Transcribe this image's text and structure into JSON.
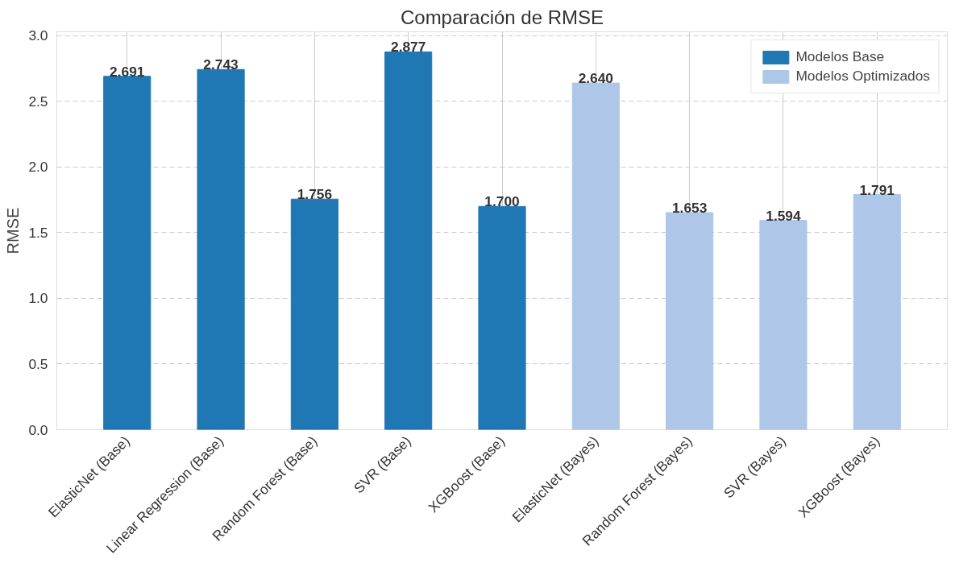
{
  "chart_data": {
    "type": "bar",
    "title": "Comparación de RMSE",
    "ylabel": "RMSE",
    "categories": [
      "ElasticNet (Base)",
      "Linear Regression (Base)",
      "Random Forest (Base)",
      "SVR (Base)",
      "XGBoost (Base)",
      "ElasticNet (Bayes)",
      "Random Forest (Bayes)",
      "SVR (Bayes)",
      "XGBoost (Bayes)"
    ],
    "series": [
      {
        "name": "Modelos Base",
        "color": "#1f77b4",
        "values": [
          2.691,
          2.743,
          1.756,
          2.877,
          1.7,
          null,
          null,
          null,
          null
        ],
        "value_labels": [
          "2.691",
          "2.743",
          "1.756",
          "2.877",
          "1.700",
          null,
          null,
          null,
          null
        ]
      },
      {
        "name": "Modelos Optimizados",
        "color": "#aec7e8",
        "values": [
          null,
          null,
          null,
          null,
          null,
          2.64,
          1.653,
          1.594,
          1.791
        ],
        "value_labels": [
          null,
          null,
          null,
          null,
          null,
          "2.640",
          "1.653",
          "1.594",
          "1.791"
        ]
      }
    ],
    "ylim": [
      0,
      3.03
    ],
    "yticks": [
      {
        "value": 0,
        "label": "0.0"
      },
      0.5,
      {
        "value": 1,
        "label": "1.0"
      },
      1.5,
      {
        "value": 2,
        "label": "2.0"
      },
      2.5,
      {
        "value": 3,
        "label": "3.0"
      }
    ],
    "grid": true,
    "legend": "top right"
  }
}
